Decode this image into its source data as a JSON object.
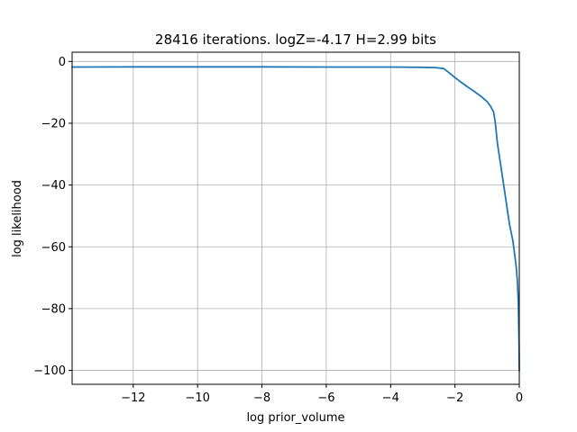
{
  "chart_data": {
    "type": "line",
    "title": "28416 iterations. logZ=-4.17 H=2.99 bits",
    "xlabel": "log prior_volume",
    "ylabel": "log likelihood",
    "xlim": [
      -13.9,
      0
    ],
    "ylim": [
      -104.5,
      3
    ],
    "x_ticks": [
      -12,
      -10,
      -8,
      -6,
      -4,
      -2,
      0
    ],
    "x_tick_labels": [
      "−12",
      "−10",
      "−8",
      "−6",
      "−4",
      "−2",
      "0"
    ],
    "y_ticks": [
      0,
      -20,
      -40,
      -60,
      -80,
      -100
    ],
    "y_tick_labels": [
      "0",
      "−20",
      "−40",
      "−60",
      "−80",
      "−100"
    ],
    "grid": true,
    "series": [
      {
        "color": "#1f77b4",
        "x": [
          -13.9,
          -12,
          -10,
          -8,
          -6,
          -4,
          -3,
          -2.6,
          -2.35,
          -2.2,
          -2.0,
          -1.8,
          -1.6,
          -1.4,
          -1.2,
          -1.0,
          -0.9,
          -0.8,
          -0.75,
          -0.72,
          -0.68,
          -0.6,
          -0.5,
          -0.4,
          -0.3,
          -0.2,
          -0.15,
          -0.1,
          -0.06,
          -0.03,
          -0.01,
          0
        ],
        "y": [
          -1.8,
          -1.75,
          -1.75,
          -1.75,
          -1.8,
          -1.8,
          -1.9,
          -2.0,
          -2.3,
          -3.5,
          -5.2,
          -6.8,
          -8.3,
          -9.7,
          -11.2,
          -13.0,
          -14.4,
          -16.3,
          -19.5,
          -22.5,
          -26.5,
          -32.0,
          -39.0,
          -46.0,
          -53.0,
          -58.0,
          -62.0,
          -66.0,
          -71.0,
          -78.0,
          -90.0,
          -100.0
        ]
      }
    ]
  }
}
